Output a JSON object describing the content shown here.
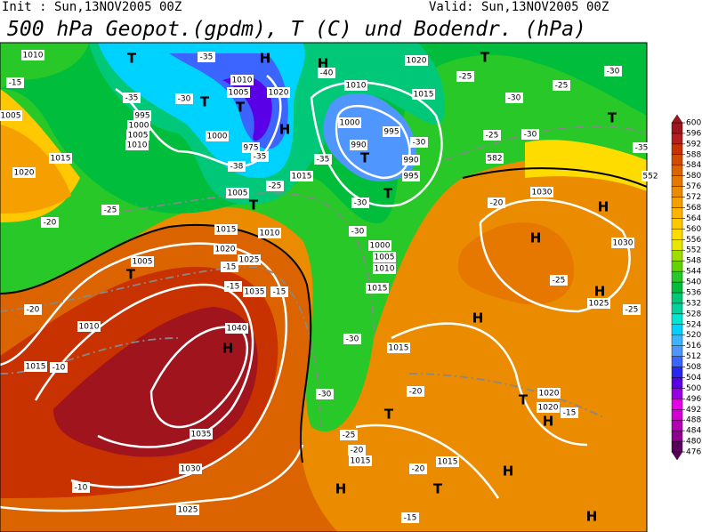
{
  "header": {
    "init": "Init : Sun,13NOV2005 00Z",
    "valid": "Valid: Sun,13NOV2005 00Z",
    "title": "500 hPa Geopot.(gpdm), T (C) und Bodendr. (hPa)"
  },
  "colorbar": {
    "levels": [
      476,
      480,
      484,
      488,
      492,
      496,
      500,
      504,
      508,
      512,
      516,
      520,
      524,
      528,
      532,
      536,
      540,
      544,
      548,
      552,
      556,
      560,
      564,
      568,
      572,
      576,
      580,
      584,
      588,
      592,
      596,
      600
    ],
    "colors": [
      "#5a005a",
      "#8c008c",
      "#b400b4",
      "#d200d2",
      "#e600e6",
      "#9600e6",
      "#5a00e6",
      "#2828f0",
      "#3c64ff",
      "#5096ff",
      "#3cb4ff",
      "#00d2ff",
      "#00e6d2",
      "#00d2a0",
      "#00c878",
      "#00be3c",
      "#28c828",
      "#64d200",
      "#a0dc00",
      "#e6e600",
      "#ffdc00",
      "#ffc800",
      "#ffb400",
      "#f5a000",
      "#eb8c00",
      "#e67800",
      "#dc6400",
      "#d24b00",
      "#c83200",
      "#b41e1e",
      "#a0141e"
    ]
  },
  "map_labels": [
    "T",
    "H",
    "H",
    "T",
    "1010",
    "-15",
    "-35",
    "1010",
    "1005",
    "1020",
    "-40",
    "1010",
    "1020",
    "1015",
    "-35",
    "995",
    "1000",
    "1005",
    "1010",
    "T",
    "T",
    "H",
    "-30",
    "1005",
    "1000",
    "975",
    "-35",
    "-38",
    "1000",
    "995",
    "990",
    "-30",
    "T",
    "990",
    "995",
    "T",
    "-35",
    "1015",
    "1015",
    "1020",
    "-25",
    "1005",
    "T",
    "-25",
    "-20",
    "1015",
    "1010",
    "1020",
    "1025",
    "-15",
    "-15",
    "1035",
    "-15",
    "1005",
    "T",
    "-30",
    "-30",
    "1000",
    "1005",
    "1010",
    "1015",
    "-20",
    "1010",
    "1040",
    "H",
    "1015",
    "-10",
    "-30",
    "1015",
    "-30",
    "-20",
    "T",
    "1035",
    "1030",
    "-25",
    "-20",
    "1015",
    "-20",
    "1015",
    "H",
    "T",
    "H",
    "-10",
    "1025",
    "-15",
    "H",
    "H",
    "H",
    "H",
    "1025",
    "-25",
    "-25",
    "T",
    "1020",
    "1020",
    "H",
    "-15",
    "1030",
    "1030",
    "-20",
    "H",
    "T",
    "-35",
    "-30",
    "-25",
    "-30",
    "-25",
    "-30",
    "1020",
    "-25",
    "582",
    "552"
  ]
}
